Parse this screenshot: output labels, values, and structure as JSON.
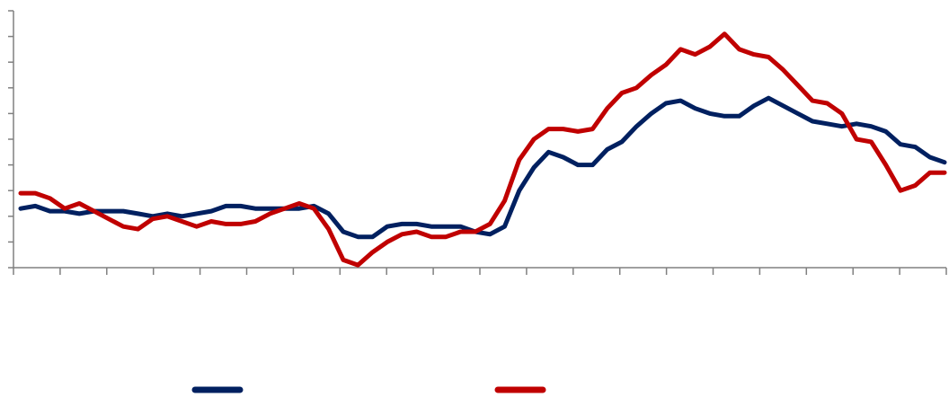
{
  "chart_data": {
    "type": "line",
    "title": "",
    "xlabel": "",
    "ylabel": "",
    "ylim": [
      0,
      10
    ],
    "y_ticks": [
      0,
      1,
      2,
      3,
      4,
      5,
      6,
      7,
      8,
      9,
      10
    ],
    "x_tick_count": 21,
    "grid": false,
    "legend_position": "bottom",
    "series": [
      {
        "color": "#002060",
        "values": [
          2.3,
          2.4,
          2.2,
          2.2,
          2.1,
          2.2,
          2.2,
          2.2,
          2.1,
          2.0,
          2.1,
          2.0,
          2.1,
          2.2,
          2.4,
          2.4,
          2.3,
          2.3,
          2.3,
          2.3,
          2.4,
          2.1,
          1.4,
          1.2,
          1.2,
          1.6,
          1.7,
          1.7,
          1.6,
          1.6,
          1.6,
          1.4,
          1.3,
          1.6,
          3.0,
          3.9,
          4.5,
          4.3,
          4.0,
          4.0,
          4.6,
          4.9,
          5.5,
          6.0,
          6.4,
          6.5,
          6.2,
          6.0,
          5.9,
          5.9,
          6.3,
          6.6,
          6.3,
          6.0,
          5.7,
          5.6,
          5.5,
          5.6,
          5.5,
          5.3,
          4.8,
          4.7,
          4.3,
          4.1
        ]
      },
      {
        "color": "#c00000",
        "values": [
          2.9,
          2.9,
          2.7,
          2.3,
          2.5,
          2.2,
          1.9,
          1.6,
          1.5,
          1.9,
          2.0,
          1.8,
          1.6,
          1.8,
          1.7,
          1.7,
          1.8,
          2.1,
          2.3,
          2.5,
          2.3,
          1.5,
          0.3,
          0.1,
          0.6,
          1.0,
          1.3,
          1.4,
          1.2,
          1.2,
          1.4,
          1.4,
          1.7,
          2.6,
          4.2,
          5.0,
          5.4,
          5.4,
          5.3,
          5.4,
          6.2,
          6.8,
          7.0,
          7.5,
          7.9,
          8.5,
          8.3,
          8.6,
          9.1,
          8.5,
          8.3,
          8.2,
          7.7,
          7.1,
          6.5,
          6.4,
          6.0,
          5.0,
          4.9,
          4.0,
          3.0,
          3.2,
          3.7,
          3.7
        ]
      }
    ]
  }
}
